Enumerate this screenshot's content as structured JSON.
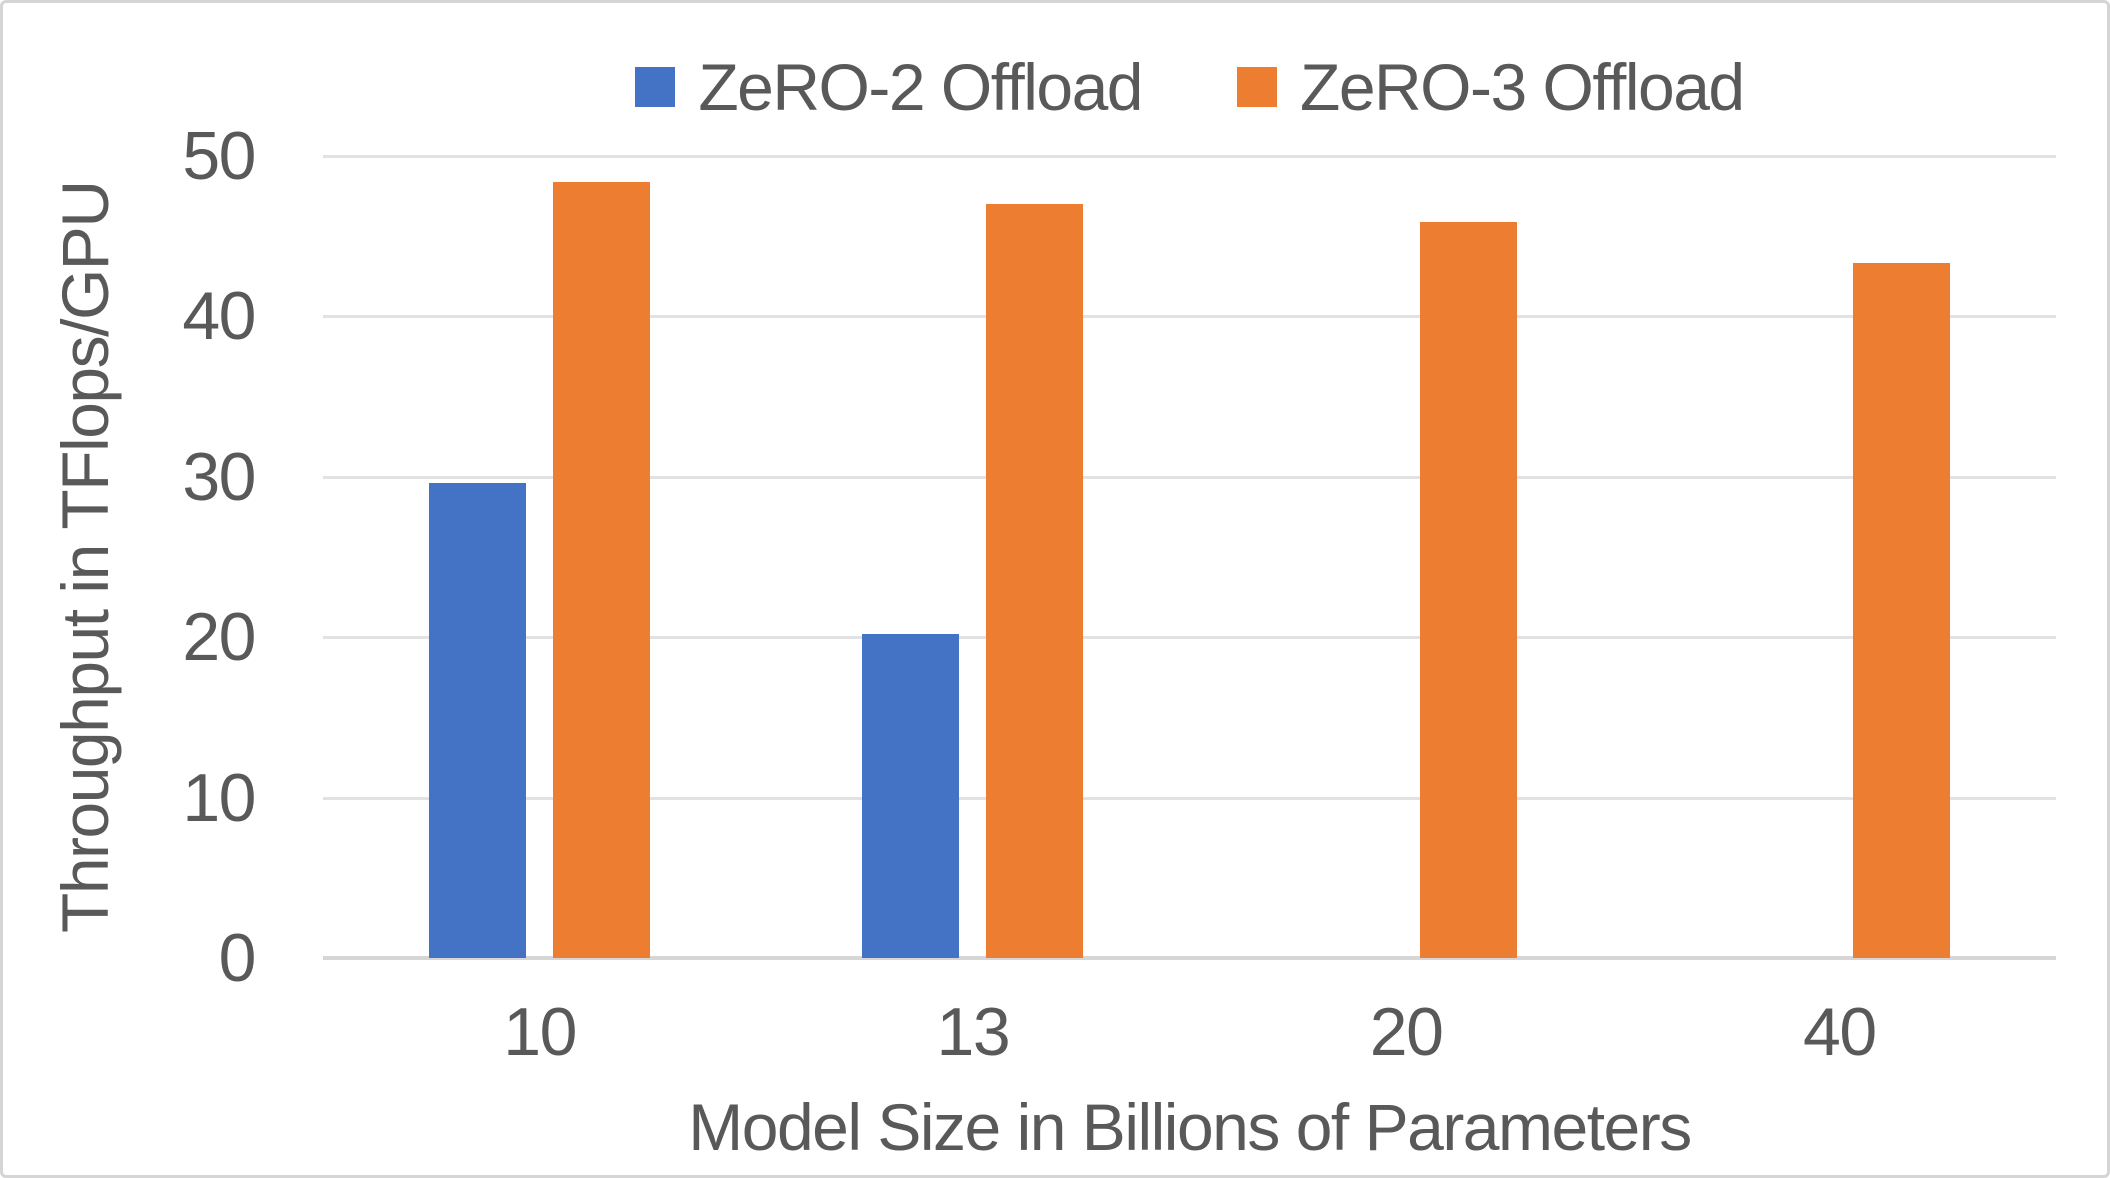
{
  "frame": {
    "background": "#ffffff",
    "border_color": "#d5d5d5"
  },
  "legend": {
    "items": [
      {
        "label": "ZeRO-2 Offload",
        "color": "#4472C4"
      },
      {
        "label": "ZeRO-3 Offload",
        "color": "#ED7D31"
      }
    ]
  },
  "chart_data": {
    "type": "bar",
    "title": "",
    "xlabel": "Model Size in Billions of Parameters",
    "ylabel": "Throughput in TFlops/GPU",
    "categories": [
      "10",
      "13",
      "20",
      "40"
    ],
    "series": [
      {
        "name": "ZeRO-2 Offload",
        "color": "#4472C4",
        "values": [
          29.6,
          20.2,
          null,
          null
        ]
      },
      {
        "name": "ZeRO-3 Offload",
        "color": "#ED7D31",
        "values": [
          48.4,
          47.0,
          45.9,
          43.3
        ]
      }
    ],
    "ylim": [
      0,
      50
    ],
    "ytick_interval": 10,
    "yticks": [
      "0",
      "10",
      "20",
      "30",
      "40",
      "50"
    ],
    "grid": true,
    "legend_position": "top",
    "text_color": "#595959",
    "gridline_color": "#e2e2e2",
    "axisline_color": "#d6d6d6"
  }
}
